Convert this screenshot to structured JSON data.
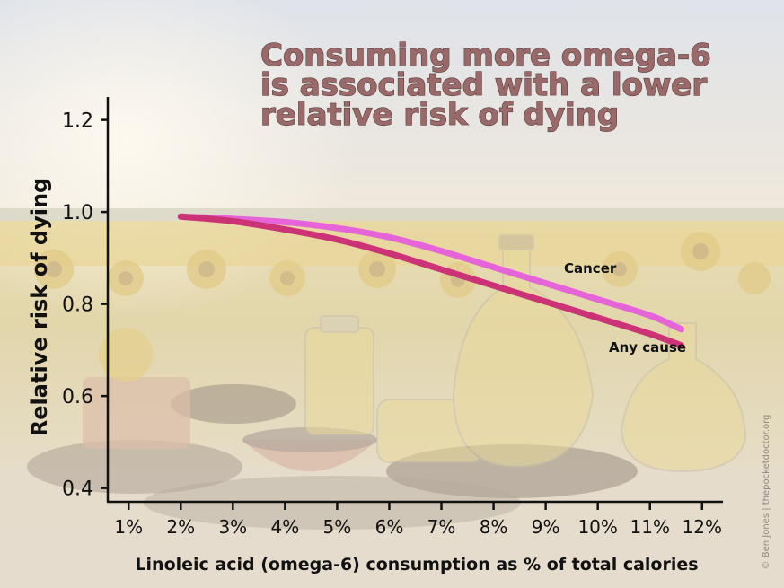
{
  "chart_data": {
    "type": "line",
    "title_lines": [
      "Consuming more omega-6",
      "is associated with a lower",
      "relative risk of dying"
    ],
    "xlabel": "Linoleic acid (omega-6) consumption as % of total calories",
    "ylabel": "Relative risk of dying",
    "x_ticks": [
      "1%",
      "2%",
      "3%",
      "4%",
      "5%",
      "6%",
      "7%",
      "8%",
      "9%",
      "10%",
      "11%",
      "12%"
    ],
    "y_ticks": [
      "1.2",
      "1.0",
      "0.8",
      "0.6",
      "0.4"
    ],
    "xlim": [
      0.6,
      12.4
    ],
    "ylim": [
      0.37,
      1.25
    ],
    "grid": false,
    "series": [
      {
        "name": "Cancer",
        "color": "#e565d9",
        "x": [
          2.0,
          3.0,
          4.0,
          5.0,
          6.0,
          7.0,
          8.0,
          9.0,
          10.0,
          11.0,
          11.6
        ],
        "y": [
          0.99,
          0.985,
          0.978,
          0.965,
          0.945,
          0.915,
          0.88,
          0.845,
          0.81,
          0.775,
          0.745
        ]
      },
      {
        "name": "Any cause",
        "color": "#cc3377",
        "x": [
          2.0,
          3.0,
          4.0,
          5.0,
          6.0,
          7.0,
          8.0,
          9.0,
          10.0,
          11.0,
          11.6
        ],
        "y": [
          0.99,
          0.98,
          0.962,
          0.94,
          0.91,
          0.875,
          0.84,
          0.805,
          0.77,
          0.735,
          0.71
        ]
      }
    ]
  },
  "credit": "© Ben Jones | thepocketdoctor.org"
}
